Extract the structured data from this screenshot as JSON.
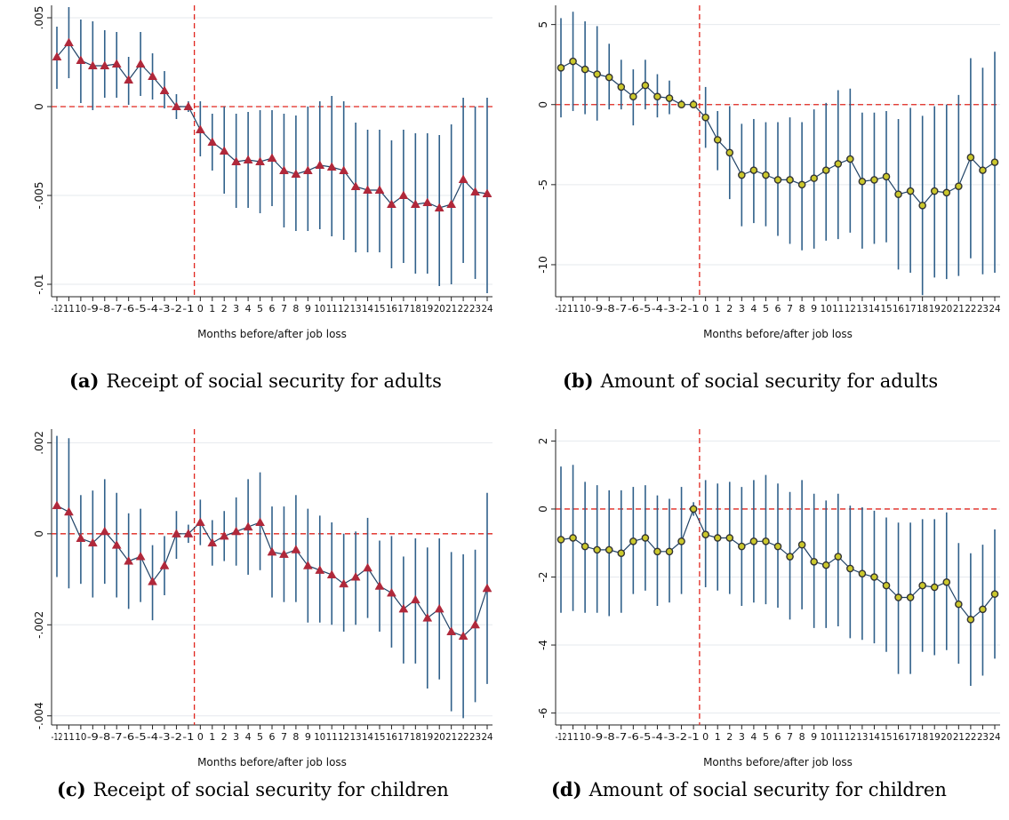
{
  "chart_data": [
    {
      "type": "line",
      "marker": "triangle",
      "xlabel": "Months before/after job loss",
      "ylabel": "",
      "x": [
        -12,
        -11,
        -10,
        -9,
        -8,
        -7,
        -6,
        -5,
        -4,
        -3,
        -2,
        -1,
        0,
        1,
        2,
        3,
        4,
        5,
        6,
        7,
        8,
        9,
        10,
        11,
        12,
        13,
        14,
        15,
        16,
        17,
        18,
        19,
        20,
        21,
        22,
        23,
        24
      ],
      "ylim": [
        -0.0107,
        0.0057
      ],
      "yticks": [
        0.005,
        0,
        -0.005,
        -0.01
      ],
      "ytick_labels": [
        ".005",
        "0",
        "-.005",
        "-.01"
      ],
      "xtick_labels": [
        "-12",
        "11",
        "10",
        "-9",
        "-8",
        "-7",
        "-6",
        "-5",
        "-4",
        "-3",
        "-2",
        "-1",
        "0",
        "1",
        "2",
        "3",
        "4",
        "5",
        "6",
        "7",
        "8",
        "9",
        "10",
        "11",
        "12",
        "13",
        "14",
        "15",
        "16",
        "17",
        "18",
        "19",
        "20",
        "21",
        "22",
        "23",
        "24"
      ],
      "series": [
        {
          "estimate": [
            0.0028,
            0.0036,
            0.0026,
            0.0023,
            0.0023,
            0.0024,
            0.0015,
            0.0024,
            0.0017,
            0.0009,
            0.0,
            0.0,
            -0.0013,
            -0.002,
            -0.0025,
            -0.0031,
            -0.003,
            -0.0031,
            -0.0029,
            -0.0036,
            -0.0038,
            -0.0036,
            -0.0033,
            -0.0034,
            -0.0036,
            -0.0045,
            -0.0047,
            -0.0047,
            -0.0055,
            -0.005,
            -0.0055,
            -0.0054,
            -0.0057,
            -0.0055,
            -0.0041,
            -0.0048,
            -0.0049
          ],
          "ci_low": [
            0.001,
            0.0016,
            0.0002,
            -0.0002,
            0.0005,
            0.0005,
            0.0001,
            0.0006,
            0.0004,
            -0.0001,
            -0.0007,
            -0.0003,
            -0.0028,
            -0.0036,
            -0.0049,
            -0.0057,
            -0.0057,
            -0.006,
            -0.0056,
            -0.0068,
            -0.007,
            -0.007,
            -0.0069,
            -0.0073,
            -0.0075,
            -0.0082,
            -0.0082,
            -0.0082,
            -0.0091,
            -0.0088,
            -0.0094,
            -0.0094,
            -0.0101,
            -0.01,
            -0.0088,
            -0.0097,
            -0.0105
          ],
          "ci_high": [
            0.0045,
            0.0056,
            0.0049,
            0.0048,
            0.0043,
            0.0042,
            0.0028,
            0.0042,
            0.003,
            0.002,
            0.0007,
            0.0003,
            0.0003,
            -0.0004,
            0.0,
            -0.0004,
            -0.0003,
            -0.0002,
            -0.0002,
            -0.0004,
            -0.0005,
            0.0,
            0.0003,
            0.0006,
            0.0003,
            -0.0009,
            -0.0013,
            -0.0013,
            -0.0019,
            -0.0013,
            -0.0015,
            -0.0015,
            -0.0016,
            -0.001,
            0.0005,
            0.0,
            0.0005
          ]
        }
      ],
      "ref_line_y": 0,
      "ref_line_x": -0.5,
      "caption_label": "(a)",
      "caption_text": "Receipt of social security for adults"
    },
    {
      "type": "line",
      "marker": "circle",
      "xlabel": "Months before/after job loss",
      "ylabel": "",
      "x": [
        -12,
        -11,
        -10,
        -9,
        -8,
        -7,
        -6,
        -5,
        -4,
        -3,
        -2,
        -1,
        0,
        1,
        2,
        3,
        4,
        5,
        6,
        7,
        8,
        9,
        10,
        11,
        12,
        13,
        14,
        15,
        16,
        17,
        18,
        19,
        20,
        21,
        22,
        23,
        24
      ],
      "ylim": [
        -12.0,
        6.2
      ],
      "yticks": [
        5,
        0,
        -5,
        -10
      ],
      "ytick_labels": [
        "5",
        "0",
        "-5",
        "-10"
      ],
      "xtick_labels": [
        "-12",
        "11",
        "10",
        "-9",
        "-8",
        "-7",
        "-6",
        "-5",
        "-4",
        "-3",
        "-2",
        "-1",
        "0",
        "1",
        "2",
        "3",
        "4",
        "5",
        "6",
        "7",
        "8",
        "9",
        "10",
        "11",
        "12",
        "13",
        "14",
        "15",
        "16",
        "17",
        "18",
        "19",
        "20",
        "21",
        "22",
        "23",
        "24"
      ],
      "series": [
        {
          "estimate": [
            2.3,
            2.7,
            2.2,
            1.9,
            1.7,
            1.1,
            0.5,
            1.2,
            0.5,
            0.4,
            0.0,
            0.0,
            -0.8,
            -2.2,
            -3.0,
            -4.4,
            -4.1,
            -4.4,
            -4.7,
            -4.7,
            -5.0,
            -4.6,
            -4.1,
            -3.7,
            -3.4,
            -4.8,
            -4.7,
            -4.5,
            -5.6,
            -5.4,
            -6.3,
            -5.4,
            -5.5,
            -5.1,
            -3.3,
            -4.1,
            -3.6
          ],
          "ci_low": [
            -0.8,
            -0.4,
            -0.6,
            -1.0,
            -0.3,
            -0.3,
            -1.3,
            -0.3,
            -0.8,
            -0.6,
            -0.1,
            -0.1,
            -2.7,
            -4.1,
            -5.9,
            -7.6,
            -7.4,
            -7.6,
            -8.2,
            -8.7,
            -9.1,
            -9.0,
            -8.5,
            -8.4,
            -8.0,
            -9.0,
            -8.7,
            -8.6,
            -10.3,
            -10.5,
            -11.9,
            -10.8,
            -10.9,
            -10.7,
            -9.6,
            -10.6,
            -10.5
          ],
          "ci_high": [
            5.4,
            5.8,
            5.2,
            4.9,
            3.8,
            2.8,
            2.2,
            2.8,
            1.9,
            1.5,
            0.3,
            0.3,
            1.1,
            -0.4,
            -0.1,
            -1.2,
            -0.9,
            -1.1,
            -1.1,
            -0.8,
            -1.1,
            -0.3,
            0.1,
            0.9,
            1.0,
            -0.5,
            -0.5,
            -0.4,
            -0.9,
            -0.2,
            -0.7,
            -0.1,
            0.0,
            0.6,
            2.9,
            2.3,
            3.3
          ]
        }
      ],
      "ref_line_y": 0,
      "ref_line_x": -0.5,
      "caption_label": "(b)",
      "caption_text": "Amount of social security for adults"
    },
    {
      "type": "line",
      "marker": "triangle",
      "xlabel": "Months before/after job loss",
      "ylabel": "",
      "x": [
        -12,
        -11,
        -10,
        -9,
        -8,
        -7,
        -6,
        -5,
        -4,
        -3,
        -2,
        -1,
        0,
        1,
        2,
        3,
        4,
        5,
        6,
        7,
        8,
        9,
        10,
        11,
        12,
        13,
        14,
        15,
        16,
        17,
        18,
        19,
        20,
        21,
        22,
        23,
        24
      ],
      "ylim": [
        -0.0042,
        0.0023
      ],
      "yticks": [
        0.002,
        0,
        -0.002,
        -0.004
      ],
      "ytick_labels": [
        ".002",
        "0",
        "-.002",
        "-.004"
      ],
      "xtick_labels": [
        "-12",
        "11",
        "10",
        "-9",
        "-8",
        "-7",
        "-6",
        "-5",
        "-4",
        "-3",
        "-2",
        "-1",
        "0",
        "1",
        "2",
        "3",
        "4",
        "5",
        "6",
        "7",
        "8",
        "9",
        "10",
        "11",
        "12",
        "13",
        "14",
        "15",
        "16",
        "17",
        "18",
        "19",
        "20",
        "21",
        "22",
        "23",
        "24"
      ],
      "series": [
        {
          "estimate": [
            0.00062,
            0.00048,
            -0.0001,
            -0.0002,
            5e-05,
            -0.00025,
            -0.0006,
            -0.0005,
            -0.00105,
            -0.0007,
            0.0,
            0.0,
            0.00025,
            -0.0002,
            -5e-05,
            5e-05,
            0.00015,
            0.00025,
            -0.0004,
            -0.00045,
            -0.00035,
            -0.0007,
            -0.0008,
            -0.0009,
            -0.0011,
            -0.00095,
            -0.00075,
            -0.00115,
            -0.0013,
            -0.00165,
            -0.00145,
            -0.00185,
            -0.00165,
            -0.00215,
            -0.00225,
            -0.002,
            -0.0012
          ],
          "ci_low": [
            -0.00095,
            -0.0012,
            -0.0011,
            -0.0014,
            -0.0011,
            -0.0014,
            -0.00165,
            -0.0015,
            -0.0019,
            -0.00135,
            -0.00055,
            -0.0002,
            -0.00025,
            -0.0007,
            -0.0006,
            -0.0007,
            -0.0009,
            -0.0008,
            -0.0014,
            -0.0015,
            -0.0015,
            -0.00195,
            -0.00195,
            -0.002,
            -0.00215,
            -0.002,
            -0.00185,
            -0.00215,
            -0.0025,
            -0.00285,
            -0.00285,
            -0.0034,
            -0.0032,
            -0.0039,
            -0.00405,
            -0.0037,
            -0.0033
          ],
          "ci_high": [
            0.00215,
            0.0021,
            0.00085,
            0.00095,
            0.0012,
            0.0009,
            0.00045,
            0.00055,
            -0.00025,
            -5e-05,
            0.0005,
            0.0002,
            0.00075,
            0.0003,
            0.0005,
            0.0008,
            0.0012,
            0.00135,
            0.0006,
            0.0006,
            0.00085,
            0.00055,
            0.0004,
            0.00025,
            0.0,
            5e-05,
            0.00035,
            -0.00015,
            -5e-05,
            -0.0005,
            -0.0001,
            -0.0003,
            -0.0001,
            -0.0004,
            -0.00045,
            -0.00035,
            0.0009
          ]
        }
      ],
      "ref_line_y": 0,
      "ref_line_x": -0.5,
      "caption_label": "(c)",
      "caption_text": "Receipt of social security for children"
    },
    {
      "type": "line",
      "marker": "circle",
      "xlabel": "Months before/after job loss",
      "ylabel": "",
      "x": [
        -12,
        -11,
        -10,
        -9,
        -8,
        -7,
        -6,
        -5,
        -4,
        -3,
        -2,
        -1,
        0,
        1,
        2,
        3,
        4,
        5,
        6,
        7,
        8,
        9,
        10,
        11,
        12,
        13,
        14,
        15,
        16,
        17,
        18,
        19,
        20,
        21,
        22,
        23,
        24
      ],
      "ylim": [
        -6.35,
        2.35
      ],
      "yticks": [
        2,
        0,
        -2,
        -4,
        -6
      ],
      "ytick_labels": [
        "2",
        "0",
        "-2",
        "-4",
        "-6"
      ],
      "xtick_labels": [
        "-12",
        "11",
        "10",
        "-9",
        "-8",
        "-7",
        "-6",
        "-5",
        "-4",
        "-3",
        "-2",
        "-1",
        "0",
        "1",
        "2",
        "3",
        "4",
        "5",
        "6",
        "7",
        "8",
        "9",
        "10",
        "11",
        "12",
        "13",
        "14",
        "15",
        "16",
        "17",
        "18",
        "19",
        "20",
        "21",
        "22",
        "23",
        "24"
      ],
      "series": [
        {
          "estimate": [
            -0.9,
            -0.85,
            -1.1,
            -1.2,
            -1.2,
            -1.3,
            -0.95,
            -0.85,
            -1.25,
            -1.25,
            -0.95,
            0.0,
            -0.75,
            -0.85,
            -0.85,
            -1.1,
            -0.95,
            -0.95,
            -1.1,
            -1.4,
            -1.05,
            -1.55,
            -1.65,
            -1.4,
            -1.75,
            -1.9,
            -2.0,
            -2.25,
            -2.6,
            -2.6,
            -2.25,
            -2.3,
            -2.15,
            -2.8,
            -3.25,
            -2.95,
            -2.5
          ],
          "ci_low": [
            -3.05,
            -3.0,
            -3.05,
            -3.05,
            -3.15,
            -3.05,
            -2.5,
            -2.4,
            -2.85,
            -2.75,
            -2.5,
            -0.2,
            -2.3,
            -2.4,
            -2.5,
            -2.85,
            -2.75,
            -2.8,
            -2.9,
            -3.25,
            -2.95,
            -3.5,
            -3.5,
            -3.45,
            -3.8,
            -3.85,
            -3.95,
            -4.2,
            -4.85,
            -4.85,
            -4.2,
            -4.3,
            -4.15,
            -4.55,
            -5.2,
            -4.9,
            -4.4
          ],
          "ci_high": [
            1.25,
            1.3,
            0.8,
            0.7,
            0.55,
            0.55,
            0.65,
            0.7,
            0.4,
            0.3,
            0.65,
            0.2,
            0.85,
            0.75,
            0.8,
            0.65,
            0.85,
            1.0,
            0.75,
            0.5,
            0.85,
            0.45,
            0.25,
            0.45,
            0.1,
            0.05,
            -0.05,
            -0.25,
            -0.4,
            -0.4,
            -0.3,
            -0.3,
            -0.1,
            -1.0,
            -1.3,
            -1.05,
            -0.6
          ]
        }
      ],
      "ref_line_y": 0,
      "ref_line_x": -0.5,
      "caption_label": "(d)",
      "caption_text": "Amount of social security for children"
    }
  ],
  "colors": {
    "triangle_marker": "#b0283a",
    "circle_marker_fill": "#cbc82c",
    "circle_marker_edge": "#333333",
    "ci_bar": "#30608a",
    "line": "#1f4266",
    "ref_line": "#e0261e",
    "grid": "#e6e9ee",
    "axis": "#222222"
  }
}
